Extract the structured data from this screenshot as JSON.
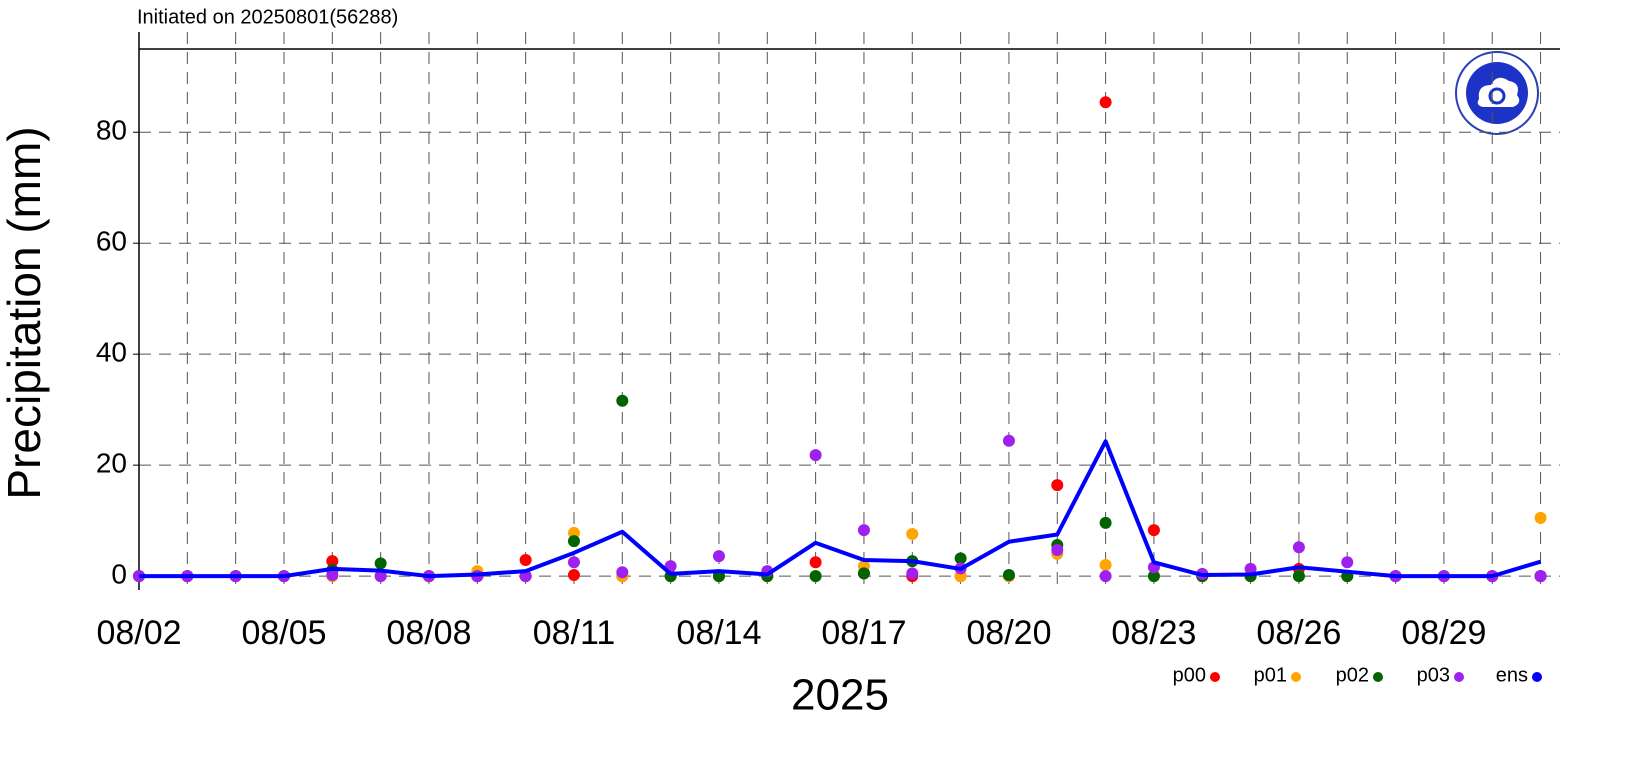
{
  "chart_data": {
    "type": "scatter",
    "title": "Initiated on 20250801(56288)",
    "x_label": "2025",
    "y_label": "Precipitation (mm)",
    "categories": [
      "08/02",
      null,
      null,
      "08/05",
      null,
      null,
      "08/08",
      null,
      null,
      "08/11",
      null,
      null,
      "08/14",
      null,
      null,
      "08/17",
      null,
      null,
      "08/20",
      null,
      null,
      "08/23",
      null,
      null,
      "08/26",
      null,
      null,
      "08/29",
      null,
      null
    ],
    "ylim": [
      -2.5,
      95
    ],
    "yticks": [
      0,
      20,
      40,
      60,
      80
    ],
    "grid": true,
    "legend": "bottom-right",
    "series": [
      {
        "name": "p00",
        "color": "#ff0000",
        "values": [
          0,
          0,
          0,
          0,
          2.7,
          0,
          0,
          0,
          2.9,
          0.2,
          0,
          0,
          0,
          0,
          2.5,
          0.5,
          0,
          0,
          0,
          16.4,
          85.4,
          8.3,
          0,
          0,
          1.3,
          0,
          0,
          0,
          0,
          0
        ]
      },
      {
        "name": "p01",
        "color": "#ffa500",
        "values": [
          0,
          0,
          0,
          0,
          0,
          0,
          0,
          0.9,
          0,
          7.8,
          0,
          0,
          0,
          0,
          0,
          1.8,
          7.6,
          0,
          0,
          4,
          2,
          0,
          0,
          0,
          0,
          0,
          0,
          0,
          0,
          10.5
        ]
      },
      {
        "name": "p02",
        "color": "#006400",
        "values": [
          0,
          0,
          0,
          0,
          1.1,
          2.3,
          0,
          0,
          0,
          6.3,
          31.6,
          0,
          0,
          0,
          0,
          0.5,
          2.7,
          3.2,
          0.2,
          5.6,
          9.6,
          0,
          0,
          0,
          0,
          0,
          0,
          0,
          0,
          0
        ]
      },
      {
        "name": "p03",
        "color": "#a020f0",
        "values": [
          0,
          0,
          0,
          0,
          0.2,
          0,
          0,
          0,
          0,
          2.5,
          0.7,
          1.8,
          3.6,
          0.9,
          21.8,
          8.3,
          0.5,
          1.4,
          24.4,
          4.7,
          0,
          1.6,
          0.4,
          1.3,
          5.2,
          2.5,
          0,
          0,
          0,
          0
        ]
      },
      {
        "name": "ens",
        "color": "#0000ff",
        "type": "line",
        "values": [
          0,
          0,
          0,
          0,
          1.3,
          1,
          0,
          0.3,
          0.9,
          4.2,
          8,
          0.4,
          0.9,
          0.3,
          6,
          2.9,
          2.7,
          1.3,
          6.2,
          7.5,
          24.3,
          2.5,
          0.2,
          0.3,
          1.6,
          0.8,
          0,
          0,
          0,
          2.6
        ]
      }
    ]
  }
}
